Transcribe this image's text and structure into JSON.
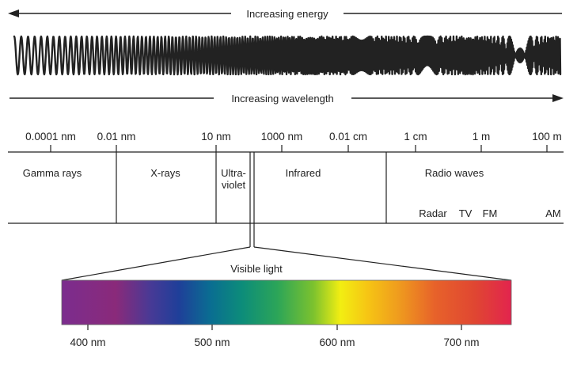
{
  "energy_arrow": {
    "label": "Increasing energy"
  },
  "wavelength_arrow": {
    "label": "Increasing wavelength"
  },
  "scale_ticks": [
    "0.0001 nm",
    "0.01 nm",
    "10 nm",
    "1000 nm",
    "0.01 cm",
    "1 cm",
    "1 m",
    "100 m"
  ],
  "bands": {
    "gamma": "Gamma rays",
    "xrays": "X-rays",
    "uv_line1": "Ultra-",
    "uv_line2": "violet",
    "infrared": "Infrared",
    "radio": "Radio waves"
  },
  "radio_subbands": [
    "Radar",
    "TV",
    "FM",
    "AM"
  ],
  "visible": {
    "label": "Visible light",
    "ticks": [
      "400 nm",
      "500 nm",
      "600 nm",
      "700 nm"
    ]
  },
  "colors": {
    "line": "#222222",
    "spectrum": [
      "#7b2d8e",
      "#8a2a7a",
      "#463a96",
      "#1f3f99",
      "#0a6d92",
      "#0c8c7a",
      "#2ca558",
      "#7cc22e",
      "#f2ee12",
      "#f6c514",
      "#ef9b1e",
      "#e7622a",
      "#e04632",
      "#e2244e"
    ]
  }
}
